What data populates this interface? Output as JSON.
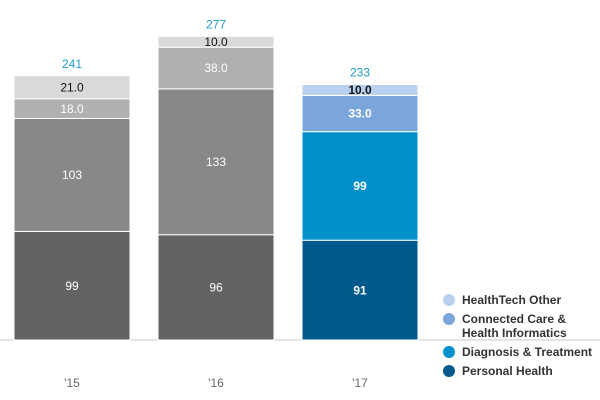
{
  "chart_data": {
    "type": "stacked-bar",
    "categories": [
      "'15",
      "'16",
      "'17"
    ],
    "series": [
      {
        "name": "Personal Health",
        "color": "#005a8c",
        "bar_colors": [
          "#636363",
          "#636363",
          "#005a8c"
        ],
        "values": [
          99,
          96,
          91
        ]
      },
      {
        "name": "Diagnosis & Treatment",
        "color": "#0091cd",
        "bar_colors": [
          "#888888",
          "#888888",
          "#0091cd"
        ],
        "values": [
          103,
          133,
          99
        ]
      },
      {
        "name": "Connected Care & Health Informatics",
        "color": "#7aa6dc",
        "bar_colors": [
          "#b0b0b0",
          "#b0b0b0",
          "#7aa6dc"
        ],
        "values": [
          18,
          38,
          33
        ],
        "value_labels": [
          "18.0",
          "38.0",
          "33.0"
        ]
      },
      {
        "name": "HealthTech Other",
        "color": "#b9d1ef",
        "bar_colors": [
          "#d9d9d9",
          "#d9d9d9",
          "#b9d1ef"
        ],
        "values": [
          21,
          10,
          10
        ],
        "value_labels": [
          "21.0",
          "10.0",
          "10.0"
        ]
      }
    ],
    "totals": [
      241,
      277,
      233
    ],
    "totals_color": "#1f9bc0",
    "ylim": [
      0,
      300
    ]
  }
}
